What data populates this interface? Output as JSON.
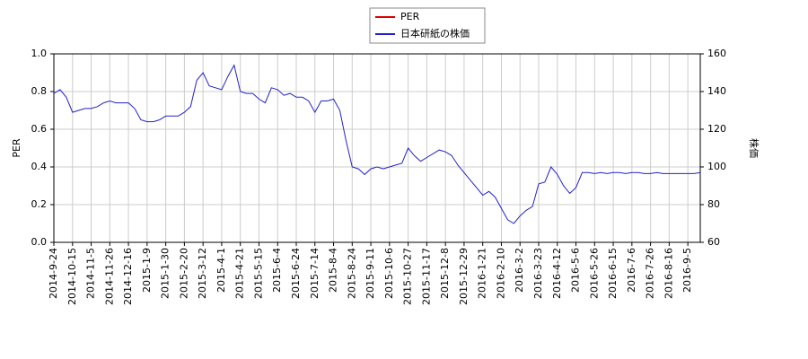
{
  "chart_data": {
    "type": "line",
    "ylabel": "PER",
    "y2label": "株価",
    "categories": [
      "2014-9-24",
      null,
      null,
      "2014-10-15",
      null,
      null,
      "2014-11-5",
      null,
      null,
      "2014-11-26",
      null,
      null,
      "2014-12-16",
      null,
      null,
      "2015-1-9",
      null,
      null,
      "2015-1-30",
      null,
      null,
      "2015-2-20",
      null,
      null,
      "2015-3-12",
      null,
      null,
      "2015-4-1",
      null,
      null,
      "2015-4-21",
      null,
      null,
      "2015-5-15",
      null,
      null,
      "2015-6-4",
      null,
      null,
      "2015-6-24",
      null,
      null,
      "2015-7-14",
      null,
      null,
      "2015-8-4",
      null,
      null,
      "2015-8-24",
      null,
      null,
      "2015-9-11",
      null,
      null,
      "2015-10-6",
      null,
      null,
      "2015-10-27",
      null,
      null,
      "2015-11-17",
      null,
      null,
      "2015-12-8",
      null,
      null,
      "2015-12-29",
      null,
      null,
      "2016-1-21",
      null,
      null,
      "2016-2-10",
      null,
      null,
      "2016-3-2",
      null,
      null,
      "2016-3-23",
      null,
      null,
      "2016-4-12",
      null,
      null,
      "2016-5-6",
      null,
      null,
      "2016-5-26",
      null,
      null,
      "2016-6-15",
      null,
      null,
      "2016-7-6",
      null,
      null,
      "2016-7-26",
      null,
      null,
      "2016-8-16",
      null,
      null,
      "2016-9-5",
      null,
      null
    ],
    "series": [
      {
        "name": "PER",
        "color": "#dd0000",
        "values": [
          null,
          null,
          null,
          null,
          null,
          null,
          null,
          null,
          null,
          null,
          null,
          null,
          null,
          null,
          null,
          null,
          null,
          null,
          null,
          null,
          null,
          null,
          null,
          null,
          null,
          null,
          null,
          null,
          null,
          null,
          null,
          null,
          null,
          null,
          null,
          null,
          null,
          null,
          null,
          null,
          null,
          null,
          null,
          null,
          null,
          null,
          null,
          null,
          null,
          null,
          null,
          null,
          null,
          null,
          null,
          null,
          null,
          null,
          null,
          null,
          null,
          null,
          null,
          null,
          null,
          null,
          null,
          null,
          null,
          null,
          null,
          null,
          null,
          null,
          null,
          null,
          null,
          null,
          null,
          null,
          null,
          null,
          null,
          null,
          null,
          null,
          null,
          null,
          null,
          null,
          null,
          null,
          null,
          null,
          null,
          null,
          null,
          null,
          null,
          null,
          null,
          null,
          null,
          null,
          null
        ]
      },
      {
        "name": "日本研紙の株価",
        "color": "#2222cc",
        "axis": "y2",
        "values": [
          139,
          141,
          137,
          129,
          130,
          131,
          131,
          132,
          134,
          135,
          134,
          134,
          134,
          131,
          125,
          124,
          124,
          125,
          127,
          127,
          127,
          129,
          132,
          146,
          150,
          143,
          142,
          141,
          148,
          154,
          140,
          139,
          139,
          136,
          134,
          142,
          141,
          138,
          139,
          137,
          137,
          135,
          129,
          135,
          135,
          136,
          130,
          114,
          100,
          99,
          96,
          99,
          100,
          99,
          100,
          101,
          102,
          110,
          106,
          103,
          105,
          107,
          109,
          108,
          106,
          101,
          97,
          93,
          89,
          85,
          87,
          84,
          78,
          72,
          70,
          74,
          77,
          79,
          91,
          92,
          100,
          96,
          90,
          86,
          89,
          97,
          97,
          96.5,
          97,
          96.5,
          97,
          97,
          96.5,
          97,
          97,
          96.5,
          96.5,
          97,
          96.5,
          96.5,
          96.5,
          96.5,
          96.5,
          96.5,
          97
        ]
      }
    ],
    "ylim": [
      0,
      1.0
    ],
    "yticks": [
      {
        "value": 0,
        "label": "0.0"
      },
      0.2,
      0.4,
      0.6,
      0.8,
      {
        "value": 1.0,
        "label": "1.0"
      }
    ],
    "y2lim": [
      60,
      160
    ],
    "y2ticks": [
      60,
      80,
      100,
      120,
      140,
      160
    ],
    "grid": true,
    "legend": "top"
  }
}
